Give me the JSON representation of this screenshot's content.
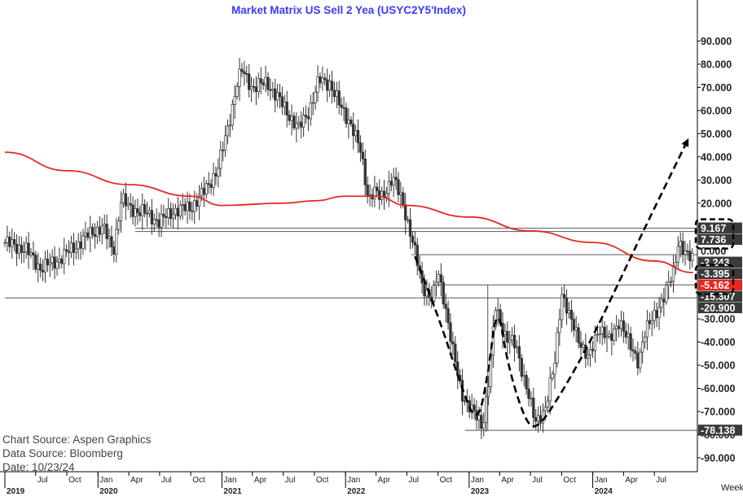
{
  "chart_data": {
    "type": "candlestick",
    "title": "Market Matrix US Sell 2 Yea (USYC2Y5'Index)",
    "frequency_label": "Week",
    "y_ticks": [
      "90.000",
      "80.000",
      "70.000",
      "60.000",
      "50.000",
      "40.000",
      "30.000",
      "20.000",
      "10.000",
      "0.000",
      "-10.000",
      "-20.000",
      "-30.000",
      "-40.000",
      "-50.000",
      "-60.000",
      "-70.000",
      "-80.000",
      "-90.000"
    ],
    "ylim": [
      -96,
      100
    ],
    "x_month_ticks": [
      {
        "t": "2019-07-01",
        "label": "Jul"
      },
      {
        "t": "2019-10-01",
        "label": "Oct"
      },
      {
        "t": "2020-01-01",
        "label": "Jan"
      },
      {
        "t": "2020-04-01",
        "label": "Apr"
      },
      {
        "t": "2020-07-01",
        "label": "Jul"
      },
      {
        "t": "2020-10-01",
        "label": "Oct"
      },
      {
        "t": "2021-01-01",
        "label": "Jan"
      },
      {
        "t": "2021-04-01",
        "label": "Apr"
      },
      {
        "t": "2021-07-01",
        "label": "Jul"
      },
      {
        "t": "2021-10-01",
        "label": "Oct"
      },
      {
        "t": "2022-01-01",
        "label": "Jan"
      },
      {
        "t": "2022-04-01",
        "label": "Apr"
      },
      {
        "t": "2022-07-01",
        "label": "Jul"
      },
      {
        "t": "2022-10-01",
        "label": "Oct"
      },
      {
        "t": "2023-01-01",
        "label": "Jan"
      },
      {
        "t": "2023-04-01",
        "label": "Apr"
      },
      {
        "t": "2023-07-01",
        "label": "Jul"
      },
      {
        "t": "2023-10-01",
        "label": "Oct"
      },
      {
        "t": "2024-01-01",
        "label": "Jan"
      },
      {
        "t": "2024-04-01",
        "label": "Apr"
      },
      {
        "t": "2024-07-01",
        "label": "Jul"
      }
    ],
    "x_year_ticks": [
      {
        "t": "2019-01-01",
        "label": "2019"
      },
      {
        "t": "2020-01-01",
        "label": "2020"
      },
      {
        "t": "2021-01-01",
        "label": "2021"
      },
      {
        "t": "2022-01-01",
        "label": "2022"
      },
      {
        "t": "2023-01-01",
        "label": "2023"
      },
      {
        "t": "2024-01-01",
        "label": "2024"
      }
    ],
    "xlim": [
      "2019-04-01",
      "2024-11-05"
    ],
    "price_path": [
      [
        "2019-04-01",
        3
      ],
      [
        "2019-06-01",
        0
      ],
      [
        "2019-07-15",
        -8
      ],
      [
        "2019-09-01",
        -5
      ],
      [
        "2019-10-15",
        0
      ],
      [
        "2019-12-01",
        6
      ],
      [
        "2020-01-15",
        10
      ],
      [
        "2020-02-15",
        -1
      ],
      [
        "2020-03-10",
        22
      ],
      [
        "2020-04-01",
        18
      ],
      [
        "2020-05-15",
        16
      ],
      [
        "2020-07-01",
        12
      ],
      [
        "2020-08-15",
        17
      ],
      [
        "2020-10-01",
        18
      ],
      [
        "2020-11-15",
        26
      ],
      [
        "2020-12-20",
        35
      ],
      [
        "2021-01-15",
        50
      ],
      [
        "2021-02-15",
        72
      ],
      [
        "2021-03-01",
        77
      ],
      [
        "2021-04-01",
        70
      ],
      [
        "2021-05-15",
        72
      ],
      [
        "2021-07-01",
        62
      ],
      [
        "2021-08-15",
        52
      ],
      [
        "2021-09-15",
        60
      ],
      [
        "2021-10-15",
        73
      ],
      [
        "2021-11-15",
        72
      ],
      [
        "2021-12-15",
        62
      ],
      [
        "2022-01-15",
        55
      ],
      [
        "2022-02-15",
        42
      ],
      [
        "2022-03-10",
        22
      ],
      [
        "2022-03-25",
        25
      ],
      [
        "2022-04-15",
        22
      ],
      [
        "2022-05-20",
        31
      ],
      [
        "2022-06-20",
        20
      ],
      [
        "2022-07-15",
        5
      ],
      [
        "2022-08-15",
        -15
      ],
      [
        "2022-09-15",
        -22
      ],
      [
        "2022-10-01",
        -10
      ],
      [
        "2022-10-20",
        -22
      ],
      [
        "2022-11-15",
        -45
      ],
      [
        "2022-12-10",
        -62
      ],
      [
        "2023-01-10",
        -70
      ],
      [
        "2023-02-10",
        -76
      ],
      [
        "2023-03-01",
        -55
      ],
      [
        "2023-03-20",
        -25
      ],
      [
        "2023-04-20",
        -38
      ],
      [
        "2023-05-20",
        -42
      ],
      [
        "2023-06-20",
        -60
      ],
      [
        "2023-07-15",
        -75
      ],
      [
        "2023-08-15",
        -68
      ],
      [
        "2023-09-10",
        -50
      ],
      [
        "2023-10-01",
        -18
      ],
      [
        "2023-10-25",
        -30
      ],
      [
        "2023-11-20",
        -38
      ],
      [
        "2023-12-20",
        -48
      ],
      [
        "2024-01-20",
        -33
      ],
      [
        "2024-02-20",
        -40
      ],
      [
        "2024-03-20",
        -30
      ],
      [
        "2024-04-20",
        -42
      ],
      [
        "2024-05-15",
        -48
      ],
      [
        "2024-06-01",
        -37
      ],
      [
        "2024-07-01",
        -28
      ],
      [
        "2024-08-01",
        -20
      ],
      [
        "2024-08-25",
        -10
      ],
      [
        "2024-09-10",
        4
      ],
      [
        "2024-10-01",
        -3
      ],
      [
        "2024-10-23",
        -3.4
      ]
    ],
    "moving_average_path": [
      [
        "2019-04-01",
        42
      ],
      [
        "2019-10-01",
        34
      ],
      [
        "2020-04-01",
        28
      ],
      [
        "2020-10-01",
        23
      ],
      [
        "2021-01-01",
        19
      ],
      [
        "2021-07-01",
        20
      ],
      [
        "2021-10-01",
        21
      ],
      [
        "2022-01-01",
        23
      ],
      [
        "2022-04-01",
        23
      ],
      [
        "2022-07-01",
        19
      ],
      [
        "2023-01-01",
        14
      ],
      [
        "2023-07-01",
        8
      ],
      [
        "2024-01-01",
        3
      ],
      [
        "2024-07-01",
        -5
      ],
      [
        "2024-10-23",
        -10
      ]
    ],
    "horizontal_levels": [
      {
        "value": 9.167,
        "start": "2020-04-20"
      },
      {
        "value": 7.736,
        "start": "2020-04-20"
      },
      {
        "value": -2.243,
        "start": "2022-07-15"
      },
      {
        "value": -15.307,
        "start": "2022-09-15"
      },
      {
        "value": -78.138,
        "start": "2022-12-20"
      },
      {
        "value": -20.9,
        "start": "2019-04-01"
      }
    ],
    "pattern_path": [
      [
        "2022-07-25",
        -3
      ],
      [
        "2022-10-01",
        -28
      ],
      [
        "2022-12-10",
        -60
      ],
      [
        "2023-01-25",
        -76
      ],
      [
        "2023-02-25",
        -55
      ],
      [
        "2023-03-25",
        -22
      ],
      [
        "2023-04-25",
        -50
      ],
      [
        "2023-06-15",
        -74
      ],
      [
        "2023-07-20",
        -78
      ],
      [
        "2023-10-01",
        -62
      ],
      [
        "2024-01-01",
        -38
      ],
      [
        "2024-04-20",
        -4
      ],
      [
        "2024-07-15",
        22
      ],
      [
        "2024-10-10",
        48
      ]
    ],
    "pattern_vline": {
      "t": "2023-02-25",
      "from": -15.307,
      "to": -78.138
    },
    "value_labels": [
      {
        "text": "9.167",
        "value": 9.167,
        "style": "dark",
        "boxed": true
      },
      {
        "text": "7.736",
        "value": 7.736,
        "style": "dark",
        "boxed": true
      },
      {
        "text": "0.000",
        "value": 0,
        "style": "tick"
      },
      {
        "text": "-2.243",
        "value": -2.243,
        "style": "dark"
      },
      {
        "text": "-3.395",
        "value": -3.395,
        "style": "dark",
        "boxed": true
      },
      {
        "text": "-5.162",
        "value": -5.162,
        "style": "red",
        "boxed": true
      },
      {
        "text": "-15.307",
        "value": -15.307,
        "style": "dark"
      },
      {
        "text": "-20.900",
        "value": -20.9,
        "style": "dark"
      },
      {
        "text": "-78.138",
        "value": -78.138,
        "style": "dark"
      }
    ],
    "colors": {
      "title": "#3b3bff",
      "moving_average": "#e8281e",
      "candles": "#333333",
      "levels": "#555555",
      "red_label": "#e8281e",
      "dark_label": "#3a3a3a"
    },
    "grid": false
  },
  "sources": {
    "line1": "Chart Source: Aspen Graphics",
    "line2": "Data Source: Bloomberg",
    "line3": "Date: 10/23/24"
  }
}
